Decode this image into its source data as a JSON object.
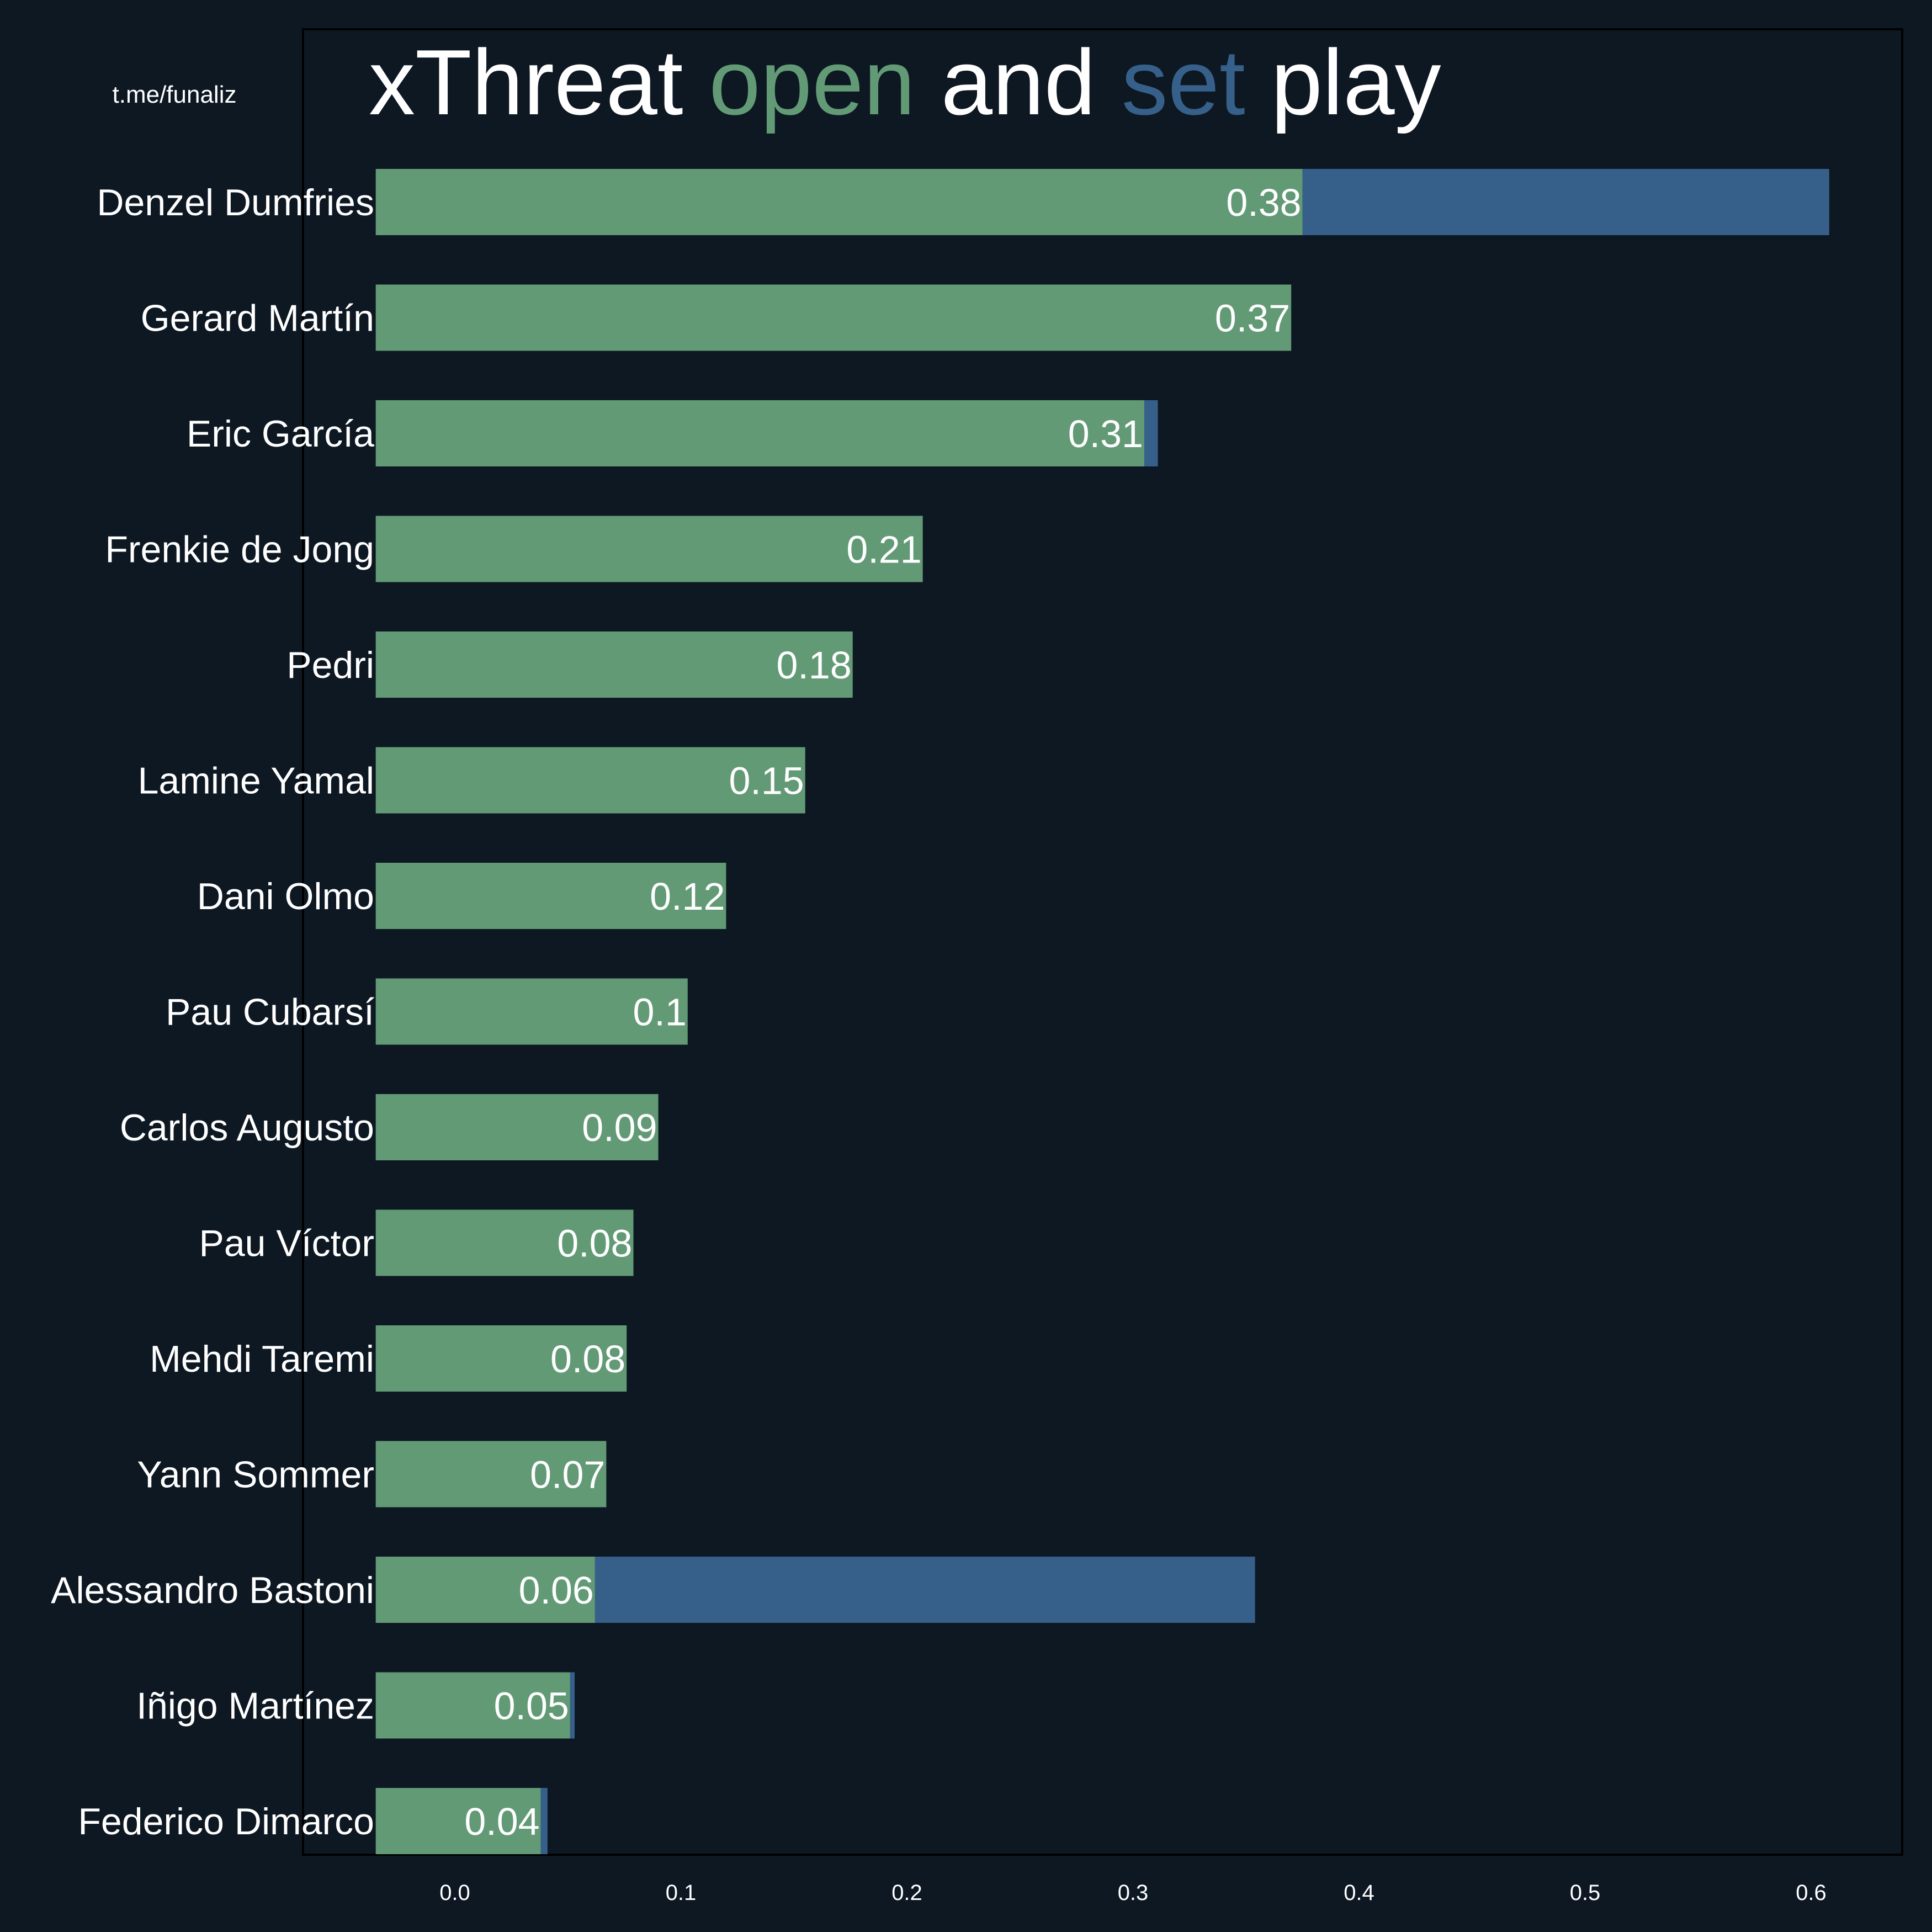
{
  "watermark": "t.me/funaliz",
  "title_parts": [
    {
      "text": "xThreat ",
      "color": "#ffffff"
    },
    {
      "text": "open",
      "color": "#629a76"
    },
    {
      "text": " and ",
      "color": "#ffffff"
    },
    {
      "text": "set",
      "color": "#36608a"
    },
    {
      "text": " play",
      "color": "#ffffff"
    }
  ],
  "colors": {
    "background": "#0e1823",
    "open_play": "#629a76",
    "set_play": "#36608a",
    "text": "#ffffff",
    "frame": "#000000"
  },
  "chart_data": {
    "type": "bar",
    "orientation": "horizontal",
    "stacked": true,
    "title": "xThreat open and set play",
    "xlabel": "",
    "ylabel": "",
    "xlim": [
      -0.035,
      0.64
    ],
    "xticks": [
      "0.0",
      "0.1",
      "0.2",
      "0.3",
      "0.4",
      "0.5",
      "0.6"
    ],
    "grid": false,
    "categories": [
      "Denzel Dumfries",
      "Gerard Martín",
      "Eric García",
      "Frenkie de Jong",
      "Pedri",
      "Lamine Yamal",
      "Dani Olmo",
      "Pau Cubarsí",
      "Carlos Augusto",
      "Pau Víctor",
      "Mehdi Taremi",
      "Yann Sommer",
      "Alessandro Bastoni",
      "Iñigo Martínez",
      "Federico Dimarco"
    ],
    "series": [
      {
        "values": [
          0.375,
          0.37,
          0.305,
          0.207,
          0.176,
          0.155,
          0.12,
          0.103,
          0.09,
          0.079,
          0.076,
          0.067,
          0.062,
          0.051,
          0.038
        ]
      },
      {
        "values": [
          0.233,
          0.0,
          0.006,
          0.0,
          0.0,
          0.0,
          0.0,
          0.0,
          0.0,
          0.0,
          0.0,
          0.0,
          0.292,
          0.002,
          0.003
        ]
      }
    ],
    "value_labels": [
      "0.38",
      "0.37",
      "0.31",
      "0.21",
      "0.18",
      "0.15",
      "0.12",
      "0.1",
      "0.09",
      "0.08",
      "0.08",
      "0.07",
      "0.06",
      "0.05",
      "0.04"
    ]
  }
}
